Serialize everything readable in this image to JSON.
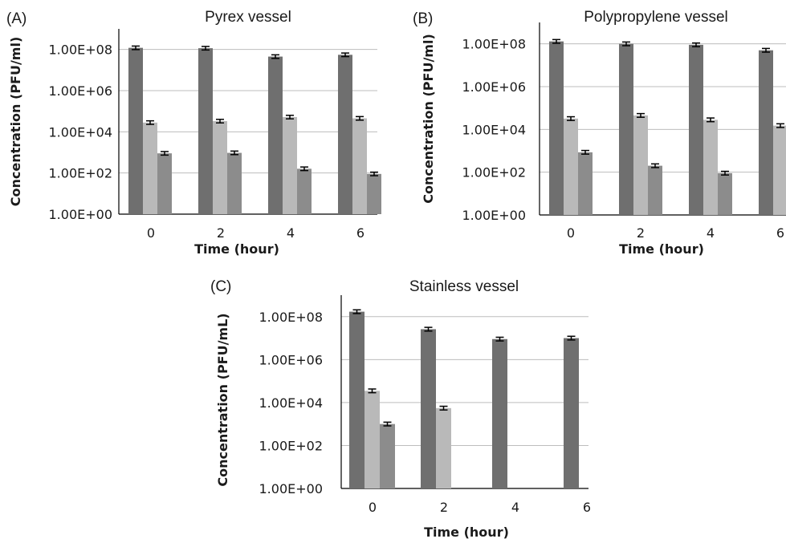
{
  "colors": {
    "series1": "#6f6f6f",
    "series2": "#b9b9b9",
    "series3": "#8c8c8c"
  },
  "chart_data": [
    {
      "type": "bar",
      "panel": "(A)",
      "title": "Pyrex vessel",
      "xlabel": "Time (hour)",
      "ylabel": "Concentration (PFU/ml)",
      "yscale": "log",
      "ylim": [
        1,
        1000000000
      ],
      "yticks": [
        "1.00E+00",
        "1.00E+02",
        "1.00E+04",
        "1.00E+06",
        "1.00E+08"
      ],
      "grid": true,
      "categories": [
        "0",
        "2",
        "4",
        "6"
      ],
      "series": [
        {
          "values": [
            120000000,
            115000000,
            45000000,
            55000000
          ]
        },
        {
          "values": [
            28000,
            33000,
            52000,
            45000
          ]
        },
        {
          "values": [
            900,
            950,
            160,
            90
          ]
        }
      ]
    },
    {
      "type": "bar",
      "panel": "(B)",
      "title": "Polypropylene vessel",
      "xlabel": "Time (hour)",
      "ylabel": "Concentration (PFU/ml)",
      "yscale": "log",
      "ylim": [
        1,
        1000000000
      ],
      "yticks": [
        "1.00E+00",
        "1.00E+02",
        "1.00E+04",
        "1.00E+06",
        "1.00E+08"
      ],
      "grid": true,
      "categories": [
        "0",
        "2",
        "4",
        "6"
      ],
      "series": [
        {
          "values": [
            130000000,
            100000000,
            90000000,
            50000000
          ]
        },
        {
          "values": [
            32000,
            45000,
            28000,
            15000
          ]
        },
        {
          "values": [
            850,
            200,
            90,
            null
          ]
        }
      ]
    },
    {
      "type": "bar",
      "panel": "(C)",
      "title": "Stainless vessel",
      "xlabel": "Time (hour)",
      "ylabel": "Concentration (PFU/mL)",
      "yscale": "log",
      "ylim": [
        1,
        1000000000
      ],
      "yticks": [
        "1.00E+00",
        "1.00E+02",
        "1.00E+04",
        "1.00E+06",
        "1.00E+08"
      ],
      "grid": true,
      "categories": [
        "0",
        "2",
        "4",
        "6"
      ],
      "series": [
        {
          "values": [
            170000000,
            26000000,
            9000000,
            10000000
          ]
        },
        {
          "values": [
            35000,
            5500,
            null,
            null
          ]
        },
        {
          "values": [
            1000,
            null,
            null,
            null
          ]
        }
      ]
    }
  ]
}
